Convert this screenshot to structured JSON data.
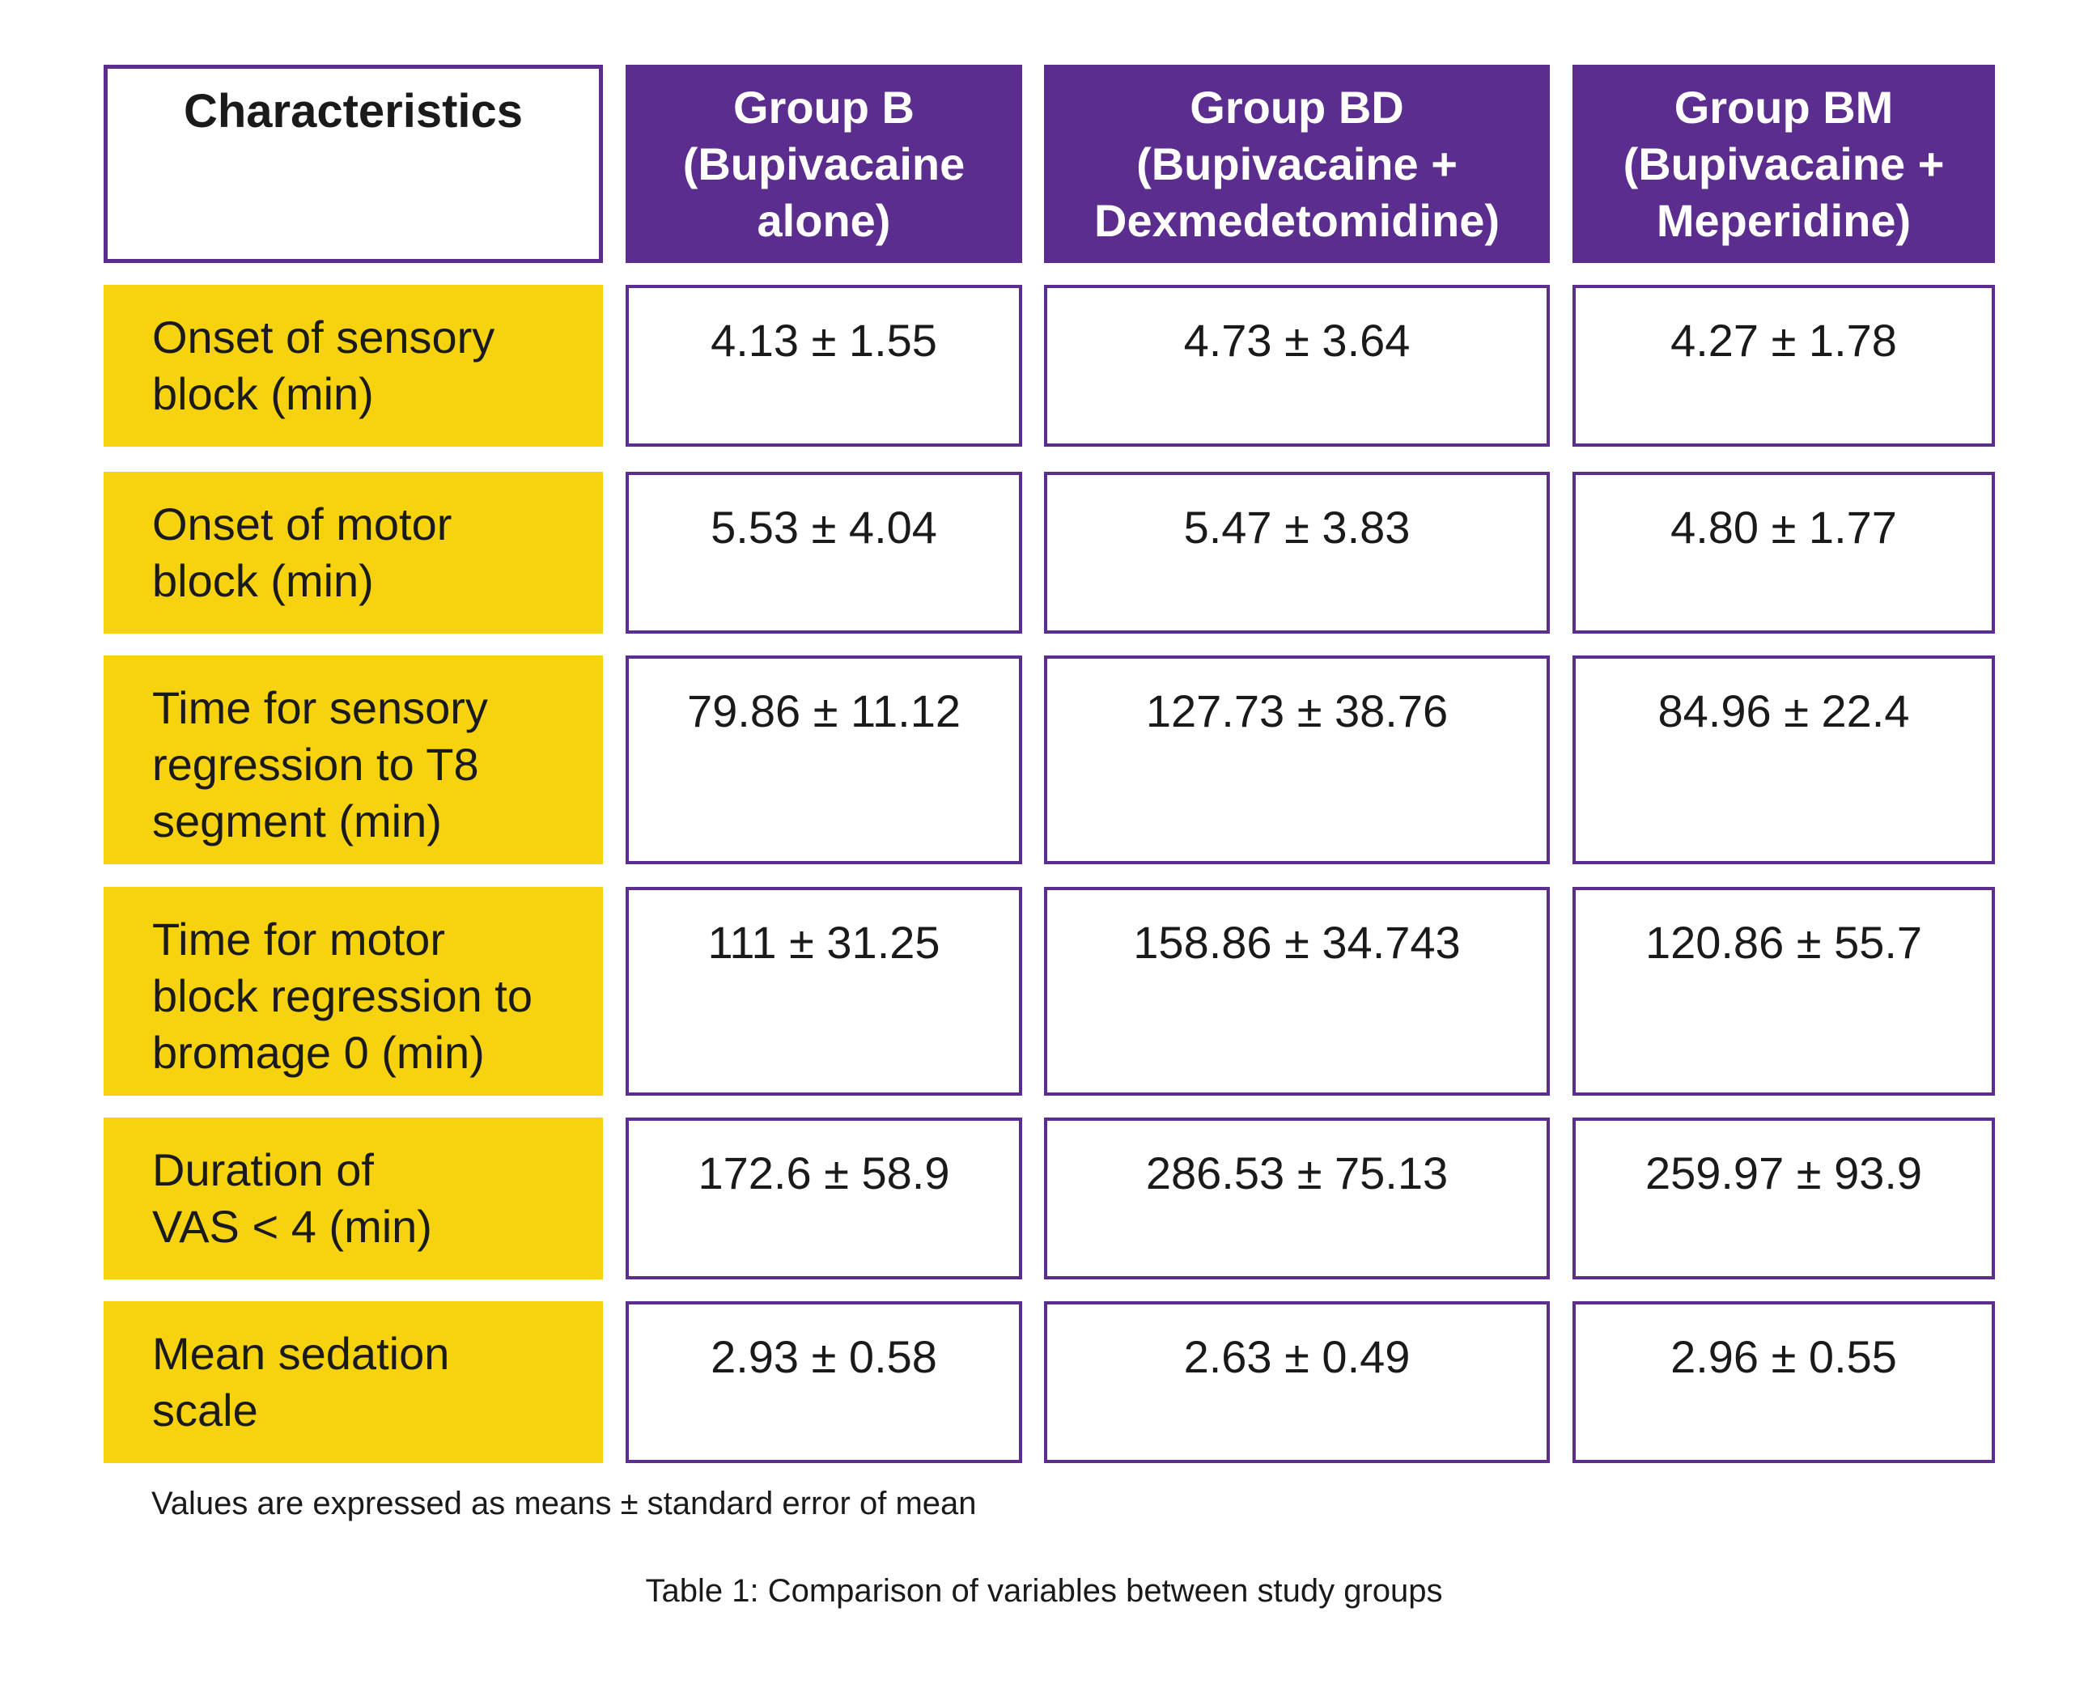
{
  "table": {
    "header": {
      "label": "Characteristics",
      "groups": [
        "Group B\n(Bupivacaine\nalone)",
        "Group BD\n(Bupivacaine +\nDexmedetomidine)",
        "Group BM\n(Bupivacaine  +\nMeperidine)"
      ]
    },
    "rows": [
      {
        "label": "Onset of sensory\nblock (min)",
        "values": [
          "4.13 ± 1.55",
          "4.73 ± 3.64",
          "4.27 ± 1.78"
        ]
      },
      {
        "label": "Onset of motor\nblock (min)",
        "values": [
          "5.53 ± 4.04",
          "5.47 ± 3.83",
          "4.80 ± 1.77"
        ]
      },
      {
        "label": "Time for sensory\nregression to T8\nsegment (min)",
        "values": [
          "79.86 ± 11.12",
          "127.73 ± 38.76",
          "84.96 ± 22.4"
        ]
      },
      {
        "label": "Time for motor\nblock regression to\nbromage 0 (min)",
        "values": [
          "111 ± 31.25",
          "158.86 ± 34.743",
          "120.86 ± 55.7"
        ]
      },
      {
        "label": "Duration of\nVAS < 4 (min)",
        "values": [
          "172.6 ± 58.9",
          "286.53 ± 75.13",
          "259.97 ± 93.9"
        ]
      },
      {
        "label": "Mean sedation\nscale",
        "values": [
          "2.93 ± 0.58",
          "2.63 ± 0.49",
          "2.96 ± 0.55"
        ]
      }
    ]
  },
  "footnote": "Values are expressed as means ± standard error of mean",
  "caption": "Table 1: Comparison of variables between study groups",
  "colors": {
    "header_purple": "#5b2d8e",
    "label_yellow": "#f6d20f",
    "border_purple": "#5b2d8e"
  }
}
